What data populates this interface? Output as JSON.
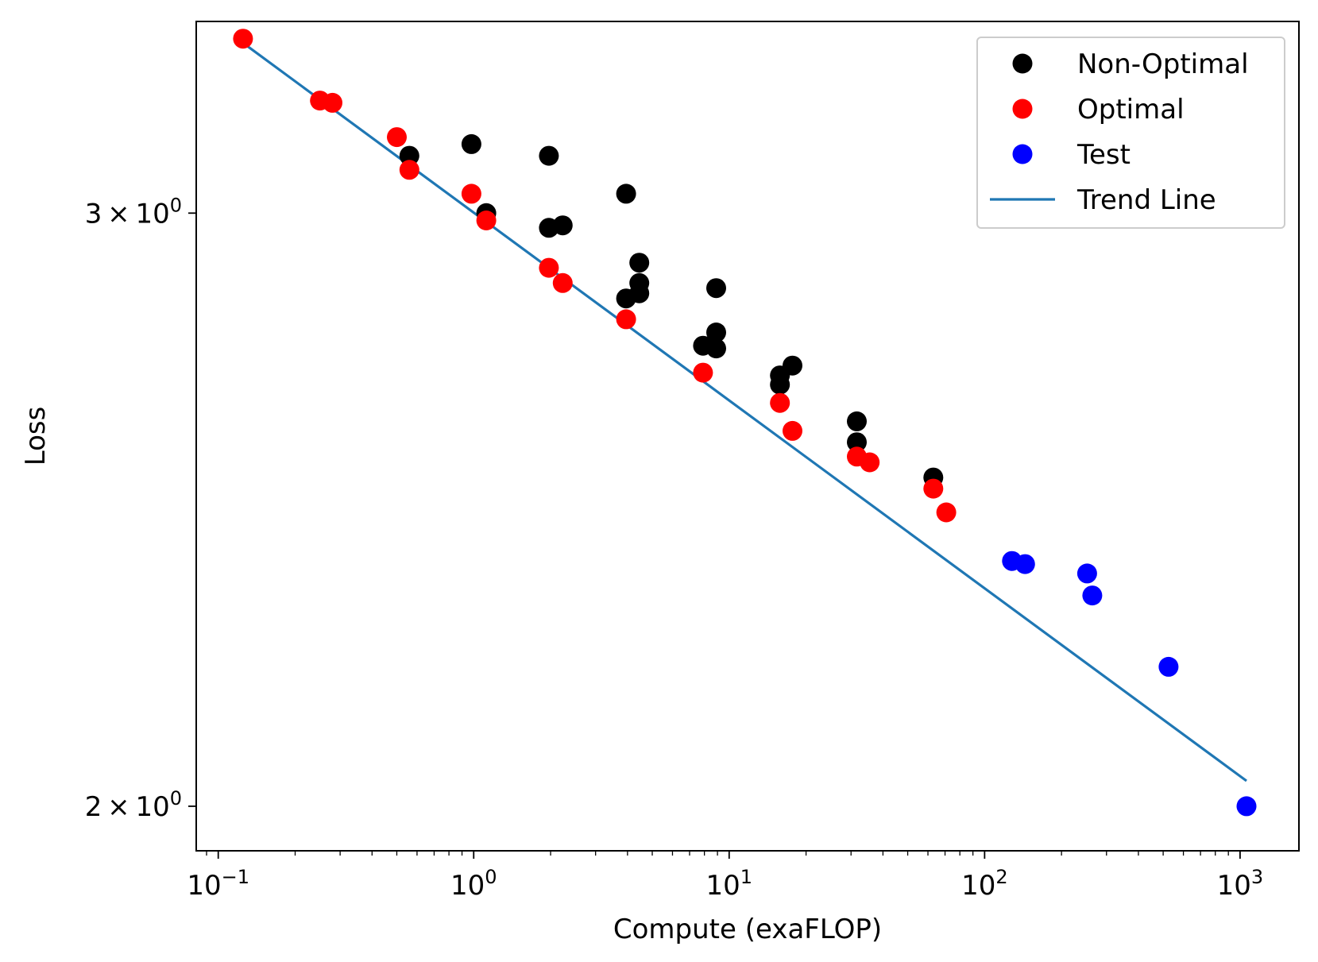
{
  "chart_data": {
    "type": "scatter",
    "xlabel": "Compute (exaFLOP)",
    "ylabel": "Loss",
    "xscale": "log",
    "yscale": "log",
    "xlim": [
      0.082,
      1700
    ],
    "ylim": [
      1.94,
      3.42
    ],
    "grid": false,
    "legend_position": "top-right",
    "x_ticks": [
      {
        "value": 0.1,
        "base": "10",
        "exp": "−1"
      },
      {
        "value": 1,
        "base": "10",
        "exp": "0"
      },
      {
        "value": 10,
        "base": "10",
        "exp": "1"
      },
      {
        "value": 100,
        "base": "10",
        "exp": "2"
      },
      {
        "value": 1000,
        "base": "10",
        "exp": "3"
      }
    ],
    "y_ticks": [
      {
        "value": 3,
        "mant": "3",
        "base": "10",
        "exp": "0"
      },
      {
        "value": 2,
        "mant": "2",
        "base": "10",
        "exp": "0"
      }
    ],
    "series": [
      {
        "name": "Non-Optimal",
        "kind": "scatter",
        "color": "#000000",
        "points": [
          [
            0.56,
            3.12
          ],
          [
            0.98,
            3.145
          ],
          [
            1.12,
            3.0
          ],
          [
            1.97,
            3.12
          ],
          [
            1.97,
            2.97
          ],
          [
            2.23,
            2.975
          ],
          [
            3.95,
            3.04
          ],
          [
            3.95,
            2.83
          ],
          [
            4.45,
            2.9
          ],
          [
            4.45,
            2.86
          ],
          [
            4.45,
            2.84
          ],
          [
            8.9,
            2.85
          ],
          [
            7.9,
            2.74
          ],
          [
            8.9,
            2.765
          ],
          [
            8.9,
            2.735
          ],
          [
            15.8,
            2.685
          ],
          [
            15.8,
            2.668
          ],
          [
            17.7,
            2.703
          ],
          [
            31.6,
            2.602
          ],
          [
            31.6,
            2.565
          ],
          [
            63,
            2.504
          ]
        ]
      },
      {
        "name": "Optimal",
        "kind": "scatter",
        "color": "#ff0000",
        "points": [
          [
            0.125,
            3.38
          ],
          [
            0.25,
            3.24
          ],
          [
            0.28,
            3.235
          ],
          [
            0.5,
            3.16
          ],
          [
            0.56,
            3.09
          ],
          [
            0.98,
            3.04
          ],
          [
            1.12,
            2.985
          ],
          [
            1.97,
            2.89
          ],
          [
            2.23,
            2.86
          ],
          [
            3.95,
            2.79
          ],
          [
            7.9,
            2.69
          ],
          [
            15.8,
            2.635
          ],
          [
            17.7,
            2.585
          ],
          [
            31.6,
            2.54
          ],
          [
            35.5,
            2.53
          ],
          [
            63,
            2.485
          ],
          [
            70.8,
            2.445
          ]
        ]
      },
      {
        "name": "Test",
        "kind": "scatter",
        "color": "#0000ff",
        "points": [
          [
            128,
            2.365
          ],
          [
            144,
            2.36
          ],
          [
            252,
            2.345
          ],
          [
            264,
            2.31
          ],
          [
            525,
            2.2
          ],
          [
            1060,
            2.0
          ]
        ]
      },
      {
        "name": "Trend Line",
        "kind": "line",
        "color": "#1f77b4",
        "points": [
          [
            0.125,
            3.37
          ],
          [
            1060,
            2.035
          ]
        ]
      }
    ]
  }
}
